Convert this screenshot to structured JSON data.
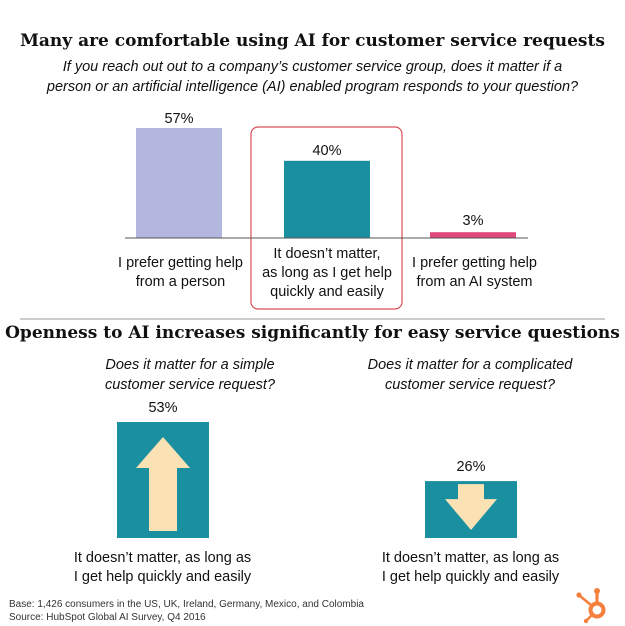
{
  "chart_data": [
    {
      "type": "bar",
      "title": "Many are comfortable using AI for customer service requests",
      "subtitle": "If you reach out out to a company’s customer service group, does it matter if a person or an artificial intelligence (AI) enabled program responds to your question?",
      "categories": [
        "I prefer getting help from a person",
        "It doesn’t matter, as long as I get help quickly and easily",
        "I prefer getting help from an AI system"
      ],
      "values": [
        57,
        40,
        3
      ],
      "value_labels": [
        "57%",
        "40%",
        "3%"
      ],
      "colors": [
        "#b3b6de",
        "#1a8fa0",
        "#e0477a"
      ],
      "highlight_index": 1,
      "highlight_color": "#d9505a",
      "ylim": [
        0,
        60
      ]
    },
    {
      "type": "bar",
      "title": "Openness to AI increases significantly for easy service questions",
      "categories": [
        "Does it matter for a simple customer service request?",
        "Does it matter for a complicated customer service request?"
      ],
      "values": [
        53,
        26
      ],
      "value_labels": [
        "53%",
        "26%"
      ],
      "bar_label": "It doesn’t matter, as long as I get help quickly and easily",
      "arrows": [
        "up",
        "down"
      ],
      "colors": [
        "#1a8fa0",
        "#1a8fa0"
      ],
      "arrow_color": "#fbe2b4",
      "ylim": [
        0,
        60
      ]
    }
  ],
  "question1": {
    "line1": "If you reach out out to a company’s customer service group, does it matter if a",
    "line2": "person or an artificial intelligence (AI) enabled program responds to your question?"
  },
  "cat1": {
    "line1": "I prefer getting help",
    "line2": "from a person"
  },
  "cat2": {
    "line1": "It doesn’t matter,",
    "line2": "as long as I get help",
    "line3": "quickly and easily"
  },
  "cat3": {
    "line1": "I prefer getting help",
    "line2": "from an AI system"
  },
  "q_simple": {
    "line1": "Does it matter for a simple",
    "line2": "customer service request?"
  },
  "q_complicated": {
    "line1": "Does it matter for a complicated",
    "line2": "customer service request?"
  },
  "answer": {
    "line1": "It doesn’t matter, as long as",
    "line2": "I get help quickly and easily"
  },
  "footnote": {
    "base": "Base: 1,426 consumers in the US, UK, Ireland, Germany, Mexico, and Colombia",
    "source": "Source: HubSpot Global AI Survey, Q4 2016"
  },
  "logo": {
    "name": "hubspot-sprocket-icon",
    "color": "#f57f3c"
  }
}
